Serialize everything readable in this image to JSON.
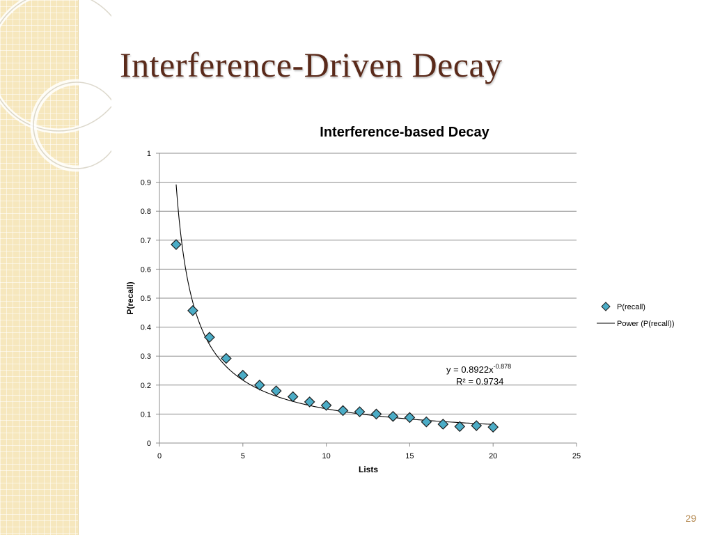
{
  "slide": {
    "title": "Interference-Driven Decay",
    "page_number": "29"
  },
  "chart_data": {
    "type": "scatter",
    "title": "Interference-based Decay",
    "xlabel": "Lists",
    "ylabel": "P(recall)",
    "xlim": [
      0,
      25
    ],
    "ylim": [
      0,
      1
    ],
    "x_ticks": [
      "0",
      "5",
      "10",
      "15",
      "20",
      "25"
    ],
    "y_ticks": [
      "0",
      "0.1",
      "0.2",
      "0.3",
      "0.4",
      "0.5",
      "0.6",
      "0.7",
      "0.8",
      "0.9",
      "1"
    ],
    "grid": "horizontal",
    "legend_position": "right",
    "series": [
      {
        "name": "P(recall)",
        "marker": "diamond",
        "color": "#4bacc6",
        "x": [
          1,
          2,
          3,
          4,
          5,
          6,
          7,
          8,
          9,
          10,
          11,
          12,
          13,
          14,
          15,
          16,
          17,
          18,
          19,
          20
        ],
        "y": [
          0.685,
          0.457,
          0.365,
          0.292,
          0.234,
          0.2,
          0.18,
          0.16,
          0.142,
          0.13,
          0.112,
          0.108,
          0.1,
          0.092,
          0.088,
          0.073,
          0.065,
          0.057,
          0.06,
          0.055
        ]
      }
    ],
    "trendline": {
      "name": "Power (P(recall))",
      "type": "power",
      "coefficient": 0.8922,
      "exponent": -0.878,
      "x_range": [
        1,
        20
      ],
      "color": "#000000",
      "equation_base": "y = 0.8922x",
      "equation_exponent": "-0.878",
      "r_squared": "R² = 0.9734"
    }
  }
}
